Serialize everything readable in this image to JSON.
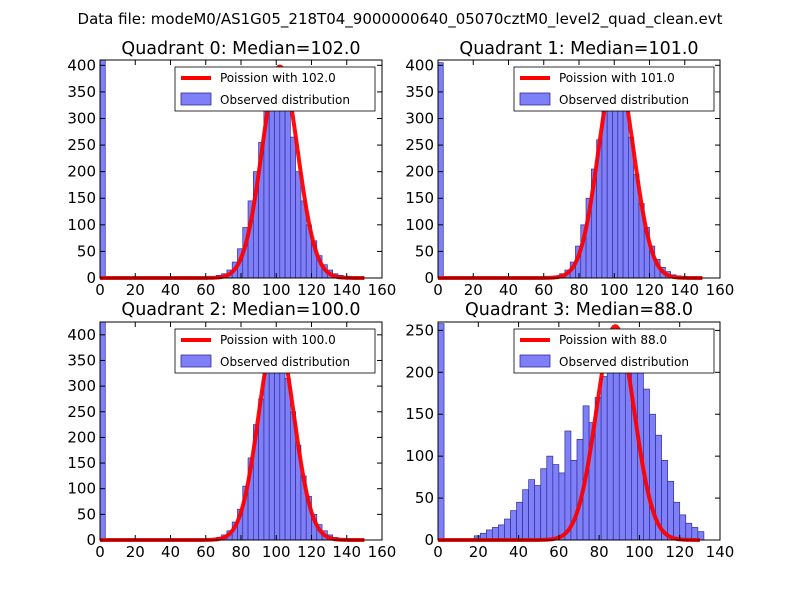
{
  "suptitle": "Data file: modeM0/AS1G05_218T04_9000000640_05070cztM0_level2_quad_clean.evt",
  "colors": {
    "observed_fill": "#7f7ff8",
    "observed_edge": "#2f2f99",
    "poisson_line": "#ff0000"
  },
  "chart_data": [
    {
      "type": "bar",
      "panel": "quadrant-0",
      "title": "Quadrant 0: Median=102.0",
      "median": 102.0,
      "xlim": [
        0,
        160
      ],
      "ylim": [
        0,
        410
      ],
      "xticks": [
        0,
        20,
        40,
        60,
        80,
        100,
        120,
        140,
        160
      ],
      "yticks": [
        0,
        50,
        100,
        150,
        200,
        250,
        300,
        350,
        400
      ],
      "bin_width": 3,
      "bins": [
        {
          "x": 0,
          "h": 410
        },
        {
          "x": 66,
          "h": 5
        },
        {
          "x": 69,
          "h": 8
        },
        {
          "x": 72,
          "h": 15
        },
        {
          "x": 75,
          "h": 30
        },
        {
          "x": 78,
          "h": 55
        },
        {
          "x": 81,
          "h": 95
        },
        {
          "x": 84,
          "h": 145
        },
        {
          "x": 87,
          "h": 200
        },
        {
          "x": 90,
          "h": 255
        },
        {
          "x": 93,
          "h": 325
        },
        {
          "x": 96,
          "h": 350
        },
        {
          "x": 99,
          "h": 390
        },
        {
          "x": 102,
          "h": 375
        },
        {
          "x": 105,
          "h": 330
        },
        {
          "x": 108,
          "h": 265
        },
        {
          "x": 111,
          "h": 200
        },
        {
          "x": 114,
          "h": 145
        },
        {
          "x": 117,
          "h": 100
        },
        {
          "x": 120,
          "h": 70
        },
        {
          "x": 123,
          "h": 42
        },
        {
          "x": 126,
          "h": 25
        },
        {
          "x": 129,
          "h": 15
        },
        {
          "x": 132,
          "h": 8
        },
        {
          "x": 135,
          "h": 5
        },
        {
          "x": 138,
          "h": 3
        },
        {
          "x": 141,
          "h": 2
        }
      ],
      "legend": [
        "Poission with 102.0",
        "Observed distribution"
      ],
      "legend_position": "top-right"
    },
    {
      "type": "bar",
      "panel": "quadrant-1",
      "title": "Quadrant 1: Median=101.0",
      "median": 101.0,
      "xlim": [
        0,
        160
      ],
      "ylim": [
        0,
        410
      ],
      "xticks": [
        0,
        20,
        40,
        60,
        80,
        100,
        120,
        140,
        160
      ],
      "yticks": [
        0,
        50,
        100,
        150,
        200,
        250,
        300,
        350,
        400
      ],
      "bin_width": 3,
      "bins": [
        {
          "x": 0,
          "h": 405
        },
        {
          "x": 66,
          "h": 4
        },
        {
          "x": 69,
          "h": 8
        },
        {
          "x": 72,
          "h": 15
        },
        {
          "x": 75,
          "h": 30
        },
        {
          "x": 78,
          "h": 60
        },
        {
          "x": 81,
          "h": 100
        },
        {
          "x": 84,
          "h": 150
        },
        {
          "x": 87,
          "h": 205
        },
        {
          "x": 90,
          "h": 260
        },
        {
          "x": 93,
          "h": 320
        },
        {
          "x": 96,
          "h": 350
        },
        {
          "x": 99,
          "h": 385
        },
        {
          "x": 102,
          "h": 370
        },
        {
          "x": 105,
          "h": 325
        },
        {
          "x": 108,
          "h": 265
        },
        {
          "x": 111,
          "h": 195
        },
        {
          "x": 114,
          "h": 140
        },
        {
          "x": 117,
          "h": 95
        },
        {
          "x": 120,
          "h": 60
        },
        {
          "x": 123,
          "h": 35
        },
        {
          "x": 126,
          "h": 20
        },
        {
          "x": 129,
          "h": 12
        },
        {
          "x": 132,
          "h": 6
        },
        {
          "x": 135,
          "h": 4
        },
        {
          "x": 138,
          "h": 2
        }
      ],
      "legend": [
        "Poission with 101.0",
        "Observed distribution"
      ],
      "legend_position": "top-right"
    },
    {
      "type": "bar",
      "panel": "quadrant-2",
      "title": "Quadrant 2: Median=100.0",
      "median": 100.0,
      "xlim": [
        0,
        160
      ],
      "ylim": [
        0,
        425
      ],
      "xticks": [
        0,
        20,
        40,
        60,
        80,
        100,
        120,
        140,
        160
      ],
      "yticks": [
        0,
        50,
        100,
        150,
        200,
        250,
        300,
        350,
        400
      ],
      "bin_width": 3,
      "bins": [
        {
          "x": 0,
          "h": 425
        },
        {
          "x": 66,
          "h": 5
        },
        {
          "x": 69,
          "h": 10
        },
        {
          "x": 72,
          "h": 18
        },
        {
          "x": 75,
          "h": 35
        },
        {
          "x": 78,
          "h": 60
        },
        {
          "x": 81,
          "h": 105
        },
        {
          "x": 84,
          "h": 160
        },
        {
          "x": 87,
          "h": 225
        },
        {
          "x": 90,
          "h": 275
        },
        {
          "x": 93,
          "h": 340
        },
        {
          "x": 96,
          "h": 370
        },
        {
          "x": 99,
          "h": 395
        },
        {
          "x": 102,
          "h": 365
        },
        {
          "x": 105,
          "h": 315
        },
        {
          "x": 108,
          "h": 250
        },
        {
          "x": 111,
          "h": 185
        },
        {
          "x": 114,
          "h": 125
        },
        {
          "x": 117,
          "h": 85
        },
        {
          "x": 120,
          "h": 50
        },
        {
          "x": 123,
          "h": 30
        },
        {
          "x": 126,
          "h": 18
        },
        {
          "x": 129,
          "h": 10
        },
        {
          "x": 132,
          "h": 5
        },
        {
          "x": 135,
          "h": 3
        }
      ],
      "legend": [
        "Poission with 100.0",
        "Observed distribution"
      ],
      "legend_position": "top-right"
    },
    {
      "type": "bar",
      "panel": "quadrant-3",
      "title": "Quadrant 3: Median=88.0",
      "median": 88.0,
      "xlim": [
        0,
        140
      ],
      "ylim": [
        0,
        260
      ],
      "xticks": [
        0,
        20,
        40,
        60,
        80,
        100,
        120,
        140
      ],
      "yticks": [
        0,
        50,
        100,
        150,
        200,
        250
      ],
      "bin_width": 3,
      "bins": [
        {
          "x": 0,
          "h": 258
        },
        {
          "x": 18,
          "h": 5
        },
        {
          "x": 21,
          "h": 8
        },
        {
          "x": 24,
          "h": 12
        },
        {
          "x": 27,
          "h": 15
        },
        {
          "x": 30,
          "h": 18
        },
        {
          "x": 33,
          "h": 25
        },
        {
          "x": 36,
          "h": 35
        },
        {
          "x": 39,
          "h": 45
        },
        {
          "x": 42,
          "h": 60
        },
        {
          "x": 45,
          "h": 72
        },
        {
          "x": 48,
          "h": 65
        },
        {
          "x": 51,
          "h": 85
        },
        {
          "x": 54,
          "h": 100
        },
        {
          "x": 57,
          "h": 90
        },
        {
          "x": 60,
          "h": 80
        },
        {
          "x": 63,
          "h": 130
        },
        {
          "x": 66,
          "h": 95
        },
        {
          "x": 69,
          "h": 120
        },
        {
          "x": 72,
          "h": 160
        },
        {
          "x": 75,
          "h": 140
        },
        {
          "x": 78,
          "h": 170
        },
        {
          "x": 81,
          "h": 195
        },
        {
          "x": 84,
          "h": 230
        },
        {
          "x": 87,
          "h": 245
        },
        {
          "x": 90,
          "h": 230
        },
        {
          "x": 93,
          "h": 250
        },
        {
          "x": 96,
          "h": 220
        },
        {
          "x": 99,
          "h": 200
        },
        {
          "x": 102,
          "h": 180
        },
        {
          "x": 105,
          "h": 150
        },
        {
          "x": 108,
          "h": 125
        },
        {
          "x": 111,
          "h": 95
        },
        {
          "x": 114,
          "h": 70
        },
        {
          "x": 117,
          "h": 45
        },
        {
          "x": 120,
          "h": 30
        },
        {
          "x": 123,
          "h": 20
        },
        {
          "x": 126,
          "h": 15
        },
        {
          "x": 129,
          "h": 10
        }
      ],
      "legend": [
        "Poission with 88.0",
        "Observed distribution"
      ],
      "legend_position": "top-right"
    }
  ]
}
